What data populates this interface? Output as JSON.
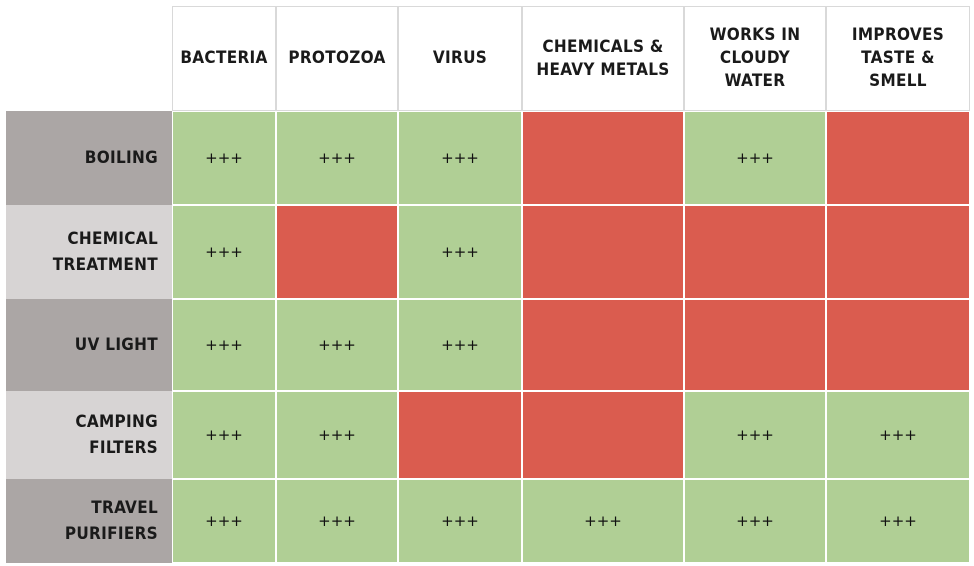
{
  "colors": {
    "effective": "#b0cf95",
    "not_effective": "#da5c4f",
    "row_header_dark": "#aba6a5",
    "row_header_light": "#d7d4d4"
  },
  "chart_data": {
    "type": "table",
    "columns": [
      "BACTERIA",
      "PROTOZOA",
      "VIRUS",
      "CHEMICALS &\nHEAVY METALS",
      "WORKS IN\nCLOUDY\nWATER",
      "IMPROVES\nTASTE &\nSMELL"
    ],
    "rows": [
      {
        "label": "BOILING",
        "cells": [
          {
            "effective": true,
            "text": "+++"
          },
          {
            "effective": true,
            "text": "+++"
          },
          {
            "effective": true,
            "text": "+++"
          },
          {
            "effective": false,
            "text": ""
          },
          {
            "effective": true,
            "text": "+++"
          },
          {
            "effective": false,
            "text": ""
          }
        ]
      },
      {
        "label": "CHEMICAL\nTREATMENT",
        "cells": [
          {
            "effective": true,
            "text": "+++"
          },
          {
            "effective": false,
            "text": ""
          },
          {
            "effective": true,
            "text": "+++"
          },
          {
            "effective": false,
            "text": ""
          },
          {
            "effective": false,
            "text": ""
          },
          {
            "effective": false,
            "text": ""
          }
        ]
      },
      {
        "label": "UV LIGHT",
        "cells": [
          {
            "effective": true,
            "text": "+++"
          },
          {
            "effective": true,
            "text": "+++"
          },
          {
            "effective": true,
            "text": "+++"
          },
          {
            "effective": false,
            "text": ""
          },
          {
            "effective": false,
            "text": ""
          },
          {
            "effective": false,
            "text": ""
          }
        ]
      },
      {
        "label": "CAMPING FILTERS",
        "cells": [
          {
            "effective": true,
            "text": "+++"
          },
          {
            "effective": true,
            "text": "+++"
          },
          {
            "effective": false,
            "text": ""
          },
          {
            "effective": false,
            "text": ""
          },
          {
            "effective": true,
            "text": "+++"
          },
          {
            "effective": true,
            "text": "+++"
          }
        ]
      },
      {
        "label": "TRAVEL PURIFIERS",
        "cells": [
          {
            "effective": true,
            "text": "+++"
          },
          {
            "effective": true,
            "text": "+++"
          },
          {
            "effective": true,
            "text": "+++"
          },
          {
            "effective": true,
            "text": "+++"
          },
          {
            "effective": true,
            "text": "+++"
          },
          {
            "effective": true,
            "text": "+++"
          }
        ]
      }
    ]
  }
}
